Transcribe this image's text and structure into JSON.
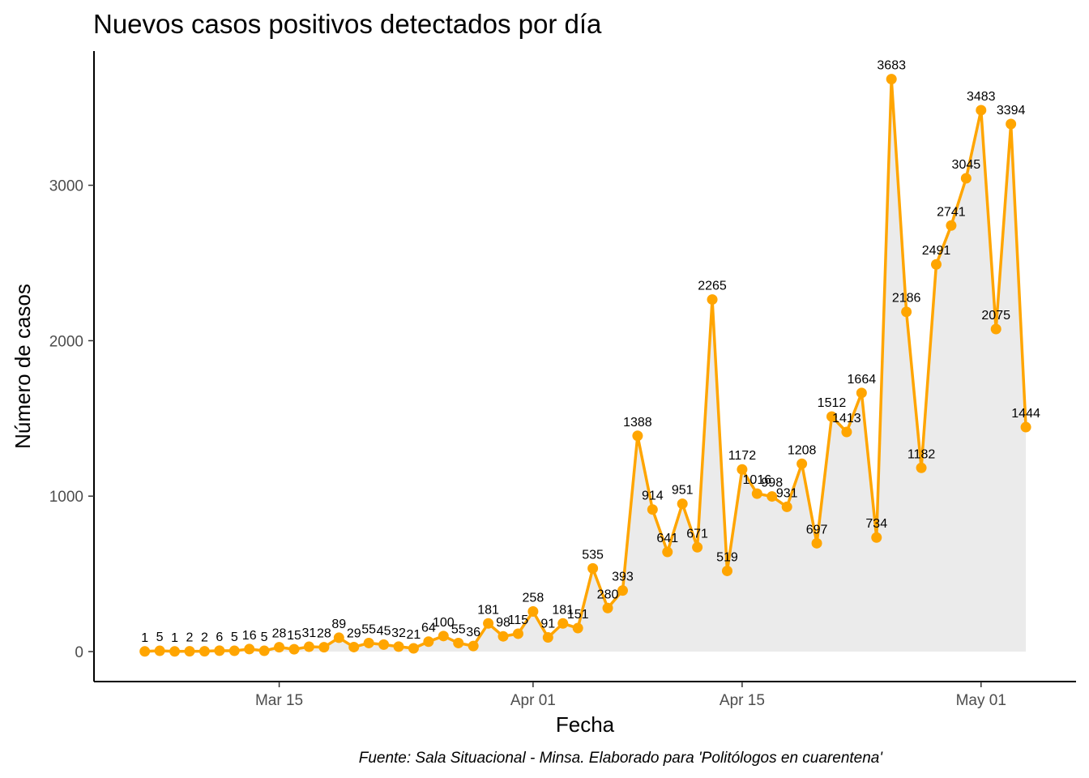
{
  "chart_data": {
    "type": "line",
    "title": "Nuevos casos positivos detectados por día",
    "xlabel": "Fecha",
    "ylabel": "Número de casos",
    "caption": "Fuente: Sala Situacional - Minsa. Elaborado para 'Politólogos en cuarentena'",
    "x_start": "2020-03-06",
    "x_ticks": [
      {
        "date": "2020-03-15",
        "label": "Mar 15"
      },
      {
        "date": "2020-04-01",
        "label": "Apr 01"
      },
      {
        "date": "2020-04-15",
        "label": "Apr 15"
      },
      {
        "date": "2020-05-01",
        "label": "May 01"
      }
    ],
    "y_ticks": [
      0,
      1000,
      2000,
      3000
    ],
    "xlim": [
      "2020-03-06",
      "2020-05-04"
    ],
    "ylim": [
      0,
      3683
    ],
    "grid": false,
    "series": [
      {
        "line_color": "#FFA500",
        "area_color": "#EBEBEB",
        "values": [
          1,
          5,
          1,
          2,
          2,
          6,
          5,
          16,
          5,
          28,
          15,
          31,
          28,
          89,
          29,
          55,
          45,
          32,
          21,
          64,
          100,
          55,
          36,
          181,
          98,
          115,
          258,
          91,
          181,
          151,
          535,
          280,
          393,
          1388,
          914,
          641,
          951,
          671,
          2265,
          519,
          1172,
          1016,
          998,
          931,
          1208,
          697,
          1512,
          1413,
          1664,
          734,
          3683,
          2186,
          1182,
          2491,
          2741,
          3045,
          3483,
          2075,
          3394,
          1444
        ]
      }
    ]
  }
}
